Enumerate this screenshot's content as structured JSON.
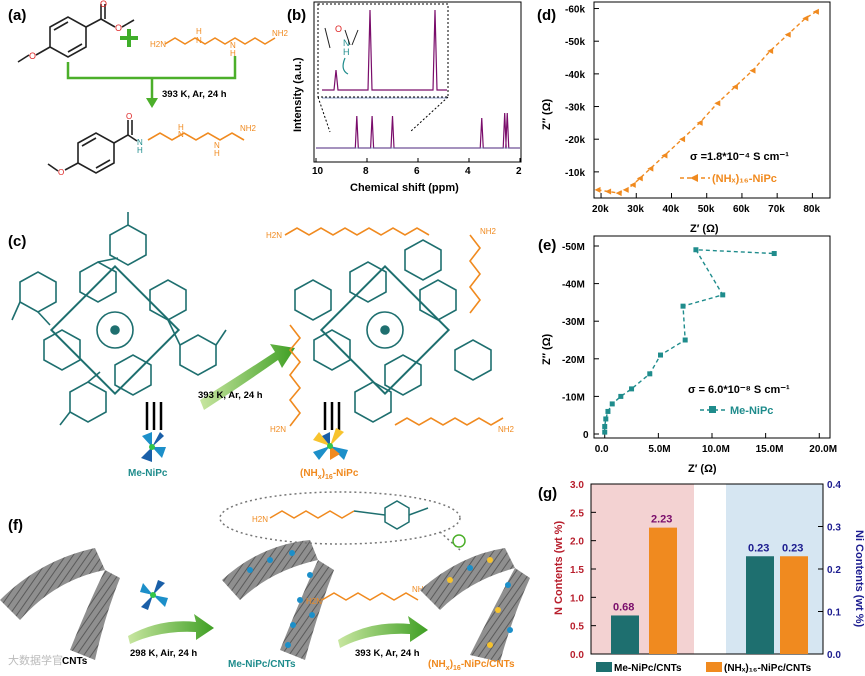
{
  "colors": {
    "orange": "#f08a1f",
    "teal": "#1f8c8c",
    "teal_dark": "#1e6f6f",
    "purple": "#7a0d6b",
    "red_axis": "#b81e2c",
    "navy_axis": "#1c1c8f",
    "green": "#4caf2a"
  },
  "panels": {
    "a": {
      "label": "(a)",
      "condition": "393 K, Ar, 24 h"
    },
    "b": {
      "label": "(b)",
      "xlabel": "Chemical shift (ppm)",
      "ylabel": "Intensity (a.u.)",
      "xticks": [
        "10",
        "8",
        "6",
        "4",
        "2"
      ],
      "inset_atoms": {
        "O": "O",
        "N": "N",
        "H": "H"
      }
    },
    "c": {
      "label": "(c)",
      "condition": "393 K, Ar, 24 h",
      "legend_left": "Me-NiPc",
      "legend_right_pre": "(NH",
      "legend_right_sub1": "x",
      "legend_right_mid": ")",
      "legend_right_sub2": "16",
      "legend_right_post": "-NiPc"
    },
    "d": {
      "label": "(d)",
      "xlabel": "Z′ (Ω)",
      "ylabel": "Z″ (Ω)",
      "annotation": "σ =1.8*10⁻⁴ S cm⁻¹",
      "legend": "(NHₓ)₁₆-NiPc"
    },
    "e": {
      "label": "(e)",
      "xlabel": "Z′ (Ω)",
      "ylabel": "Z″ (Ω)",
      "annotation": "σ = 6.0*10⁻⁸ S cm⁻¹",
      "legend": "Me-NiPc"
    },
    "f": {
      "label": "(f)",
      "step1": "298 K, Air, 24 h",
      "step2": "393 K, Ar, 24 h",
      "cnt_label": "CNTs",
      "mid_label": "Me-NiPc/CNTs",
      "right_label_pre": "(NH",
      "right_label_sub1": "x",
      "right_label_mid": ")",
      "right_label_sub2": "16",
      "right_label_post": "-NiPc/CNTs"
    },
    "g": {
      "label": "(g)",
      "ylabel_left": "N Contents (wt %)",
      "ylabel_right": "Ni Contents (wt %)",
      "legend": [
        "Me-NiPc/CNTs",
        "(NHₓ)₁₆-NiPc/CNTs"
      ]
    }
  },
  "watermark": "大数据学官",
  "chart_data": [
    {
      "panel": "b",
      "type": "line",
      "title": "",
      "xlabel": "Chemical shift (ppm)",
      "ylabel": "Intensity (a.u.)",
      "xlim": [
        10,
        2
      ],
      "series": [
        {
          "name": "(NHₓ)₁₆-NiPc",
          "peaks_ppm": [
            8.4,
            7.8,
            7.0,
            3.5,
            2.6,
            2.5
          ]
        }
      ]
    },
    {
      "panel": "d",
      "type": "scatter",
      "xlabel": "Z′ (Ω)",
      "ylabel": "Z″ (Ω)",
      "xlim": [
        18000,
        85000
      ],
      "ylim": [
        -2000,
        -62000
      ],
      "x_ticks": [
        "20k",
        "30k",
        "40k",
        "50k",
        "60k",
        "70k",
        "80k"
      ],
      "y_ticks": [
        "-10k",
        "-20k",
        "-30k",
        "-40k",
        "-50k",
        "-60k"
      ],
      "series": [
        {
          "name": "(NHₓ)₁₆-NiPc",
          "x": [
            19000,
            22000,
            25000,
            27000,
            29000,
            31000,
            34000,
            38000,
            43000,
            48000,
            53000,
            58000,
            63000,
            68000,
            73000,
            78000,
            81000
          ],
          "y": [
            -4500,
            -4000,
            -3500,
            -4500,
            -6000,
            -8000,
            -11000,
            -15000,
            -20000,
            -25000,
            -31000,
            -36000,
            -41000,
            -47000,
            -52000,
            -57000,
            -59000
          ]
        }
      ]
    },
    {
      "panel": "e",
      "type": "scatter",
      "xlabel": "Z′ (Ω)",
      "ylabel": "Z″ (Ω)",
      "xlim": [
        -1000000,
        21000000
      ],
      "ylim": [
        0,
        -50000000
      ],
      "x_ticks": [
        "0.0",
        "5.0M",
        "10.0M",
        "15.0M",
        "20.0M"
      ],
      "y_ticks": [
        "0",
        "-10M",
        "-20M",
        "-30M",
        "-40M",
        "-50M"
      ],
      "series": [
        {
          "name": "Me-NiPc",
          "x": [
            0,
            0,
            100000,
            300000,
            700000,
            1500000,
            2500000,
            4200000,
            5200000,
            7500000,
            7300000,
            11000000,
            8500000,
            15800000
          ],
          "y": [
            -500000,
            -2000000,
            -4000000,
            -6000000,
            -8000000,
            -10000000,
            -12000000,
            -16000000,
            -21000000,
            -25000000,
            -34000000,
            -37000000,
            -49000000,
            -48000000
          ]
        }
      ]
    },
    {
      "panel": "g",
      "type": "bar",
      "categories": [
        "Me-NiPc/CNTs",
        "(NHₓ)₁₆-NiPc/CNTs"
      ],
      "ylim_left": [
        0,
        3.0
      ],
      "ylim_right": [
        0,
        0.4
      ],
      "y_ticks_left": [
        "0.0",
        "0.5",
        "1.0",
        "1.5",
        "2.0",
        "2.5",
        "3.0"
      ],
      "y_ticks_right": [
        "0.0",
        "0.1",
        "0.2",
        "0.3",
        "0.4"
      ],
      "series": [
        {
          "name": "N Contents",
          "axis": "left",
          "values": [
            0.68,
            2.23
          ],
          "labels": [
            "0.68",
            "2.23"
          ]
        },
        {
          "name": "Ni Contents",
          "axis": "right",
          "values": [
            0.23,
            0.23
          ],
          "labels": [
            "0.23",
            "0.23"
          ]
        }
      ]
    }
  ]
}
